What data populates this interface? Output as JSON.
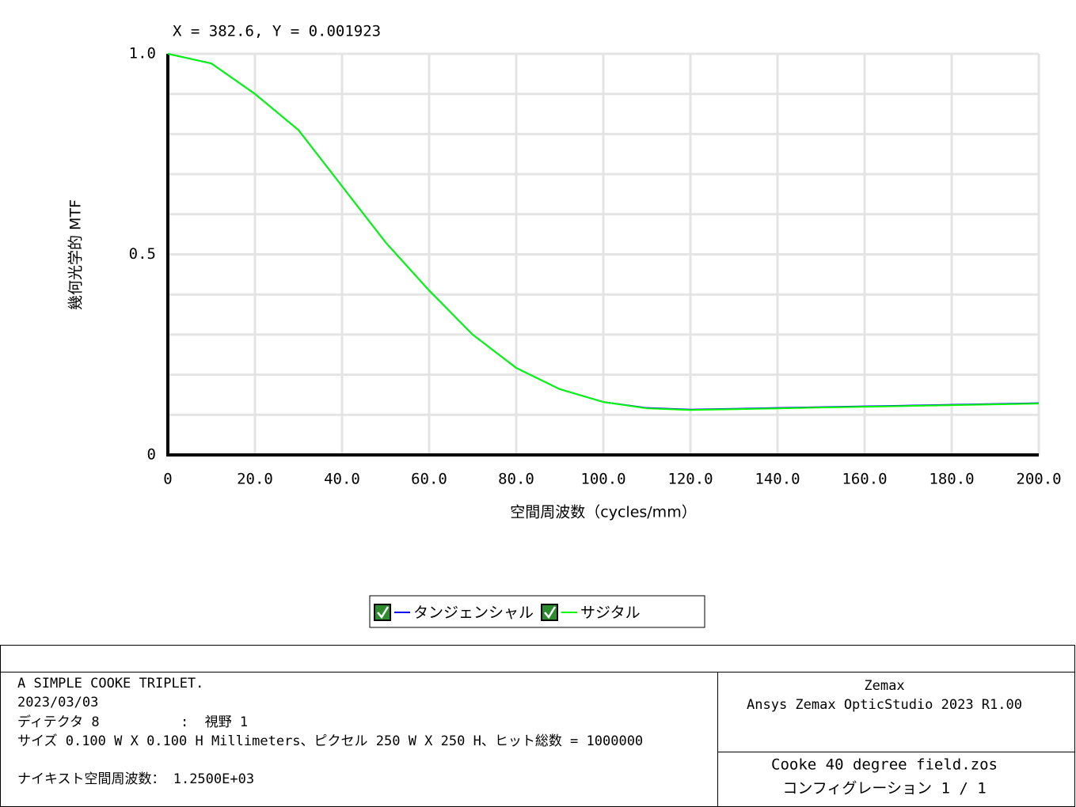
{
  "chart_data": {
    "type": "line",
    "annotation": "X = 382.6, Y = 0.001923",
    "ylabel": "幾何光学的 MTF",
    "xlabel": "空間周波数（cycles/mm）",
    "x": [
      0,
      10,
      20,
      30,
      40,
      50,
      60,
      70,
      80,
      90,
      100,
      110,
      120,
      130,
      140,
      150,
      160,
      170,
      180,
      190,
      200
    ],
    "series": [
      {
        "name": "タンジェンシャル",
        "color": "#0000ff",
        "values": [
          1.0,
          0.976,
          0.9,
          0.81,
          0.67,
          0.53,
          0.41,
          0.3,
          0.217,
          0.164,
          0.132,
          0.117,
          0.113,
          0.115,
          0.117,
          0.119,
          0.121,
          0.123,
          0.125,
          0.127,
          0.129
        ]
      },
      {
        "name": "サジタル",
        "color": "#00ff00",
        "values": [
          1.0,
          0.976,
          0.9,
          0.81,
          0.67,
          0.53,
          0.41,
          0.3,
          0.217,
          0.164,
          0.132,
          0.116,
          0.112,
          0.114,
          0.116,
          0.118,
          0.12,
          0.122,
          0.124,
          0.126,
          0.128
        ]
      }
    ],
    "xlim": [
      0,
      200
    ],
    "ylim": [
      0,
      1
    ],
    "xticks": [
      0,
      {
        "value": 20,
        "label": "20.0"
      },
      {
        "value": 40,
        "label": "40.0"
      },
      {
        "value": 60,
        "label": "60.0"
      },
      {
        "value": 80,
        "label": "80.0"
      },
      {
        "value": 100,
        "label": "100.0"
      },
      {
        "value": 120,
        "label": "120.0"
      },
      {
        "value": 140,
        "label": "140.0"
      },
      {
        "value": 160,
        "label": "160.0"
      },
      {
        "value": 180,
        "label": "180.0"
      },
      {
        "value": 200,
        "label": "200.0"
      }
    ],
    "yticks": [
      0,
      0.5,
      {
        "value": 1,
        "label": "1.0"
      }
    ],
    "yminor_ticks": [
      0.1,
      0.2,
      0.3,
      0.4,
      0.6,
      0.7,
      0.8,
      0.9
    ],
    "grid": true
  },
  "footer": {
    "left": [
      "A SIMPLE COOKE TRIPLET.",
      "2023/03/03",
      "ディテクタ 8          :  視野 1",
      "サイズ 0.100 W X 0.100 H Millimeters、ピクセル 250 W X 250 H、ヒット総数 = 1000000",
      "ナイキスト空間周波数： 1.2500E+03"
    ],
    "right_top": [
      "Zemax",
      "Ansys Zemax OpticStudio 2023 R1.00"
    ],
    "right_bottom": [
      "Cooke 40 degree field.zos",
      "コンフィグレーション 1 / 1"
    ]
  }
}
